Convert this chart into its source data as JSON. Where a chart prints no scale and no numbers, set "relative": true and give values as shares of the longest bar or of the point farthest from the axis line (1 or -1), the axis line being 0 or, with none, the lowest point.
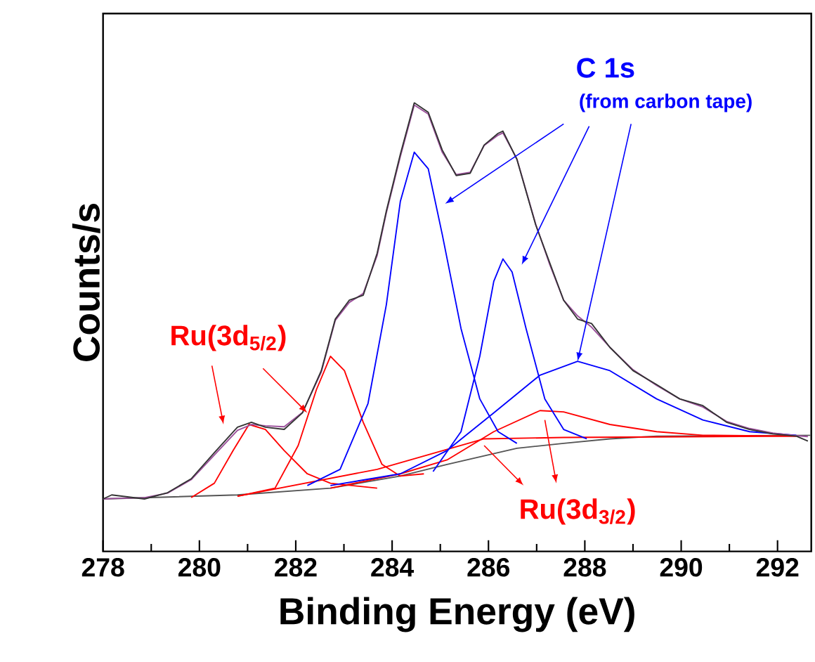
{
  "chart_data": {
    "type": "line",
    "relative": true,
    "xlabel": "Binding Energy (eV)",
    "ylabel": "Counts/s",
    "xlim": [
      278,
      292.7
    ],
    "xticks": [
      278,
      280,
      282,
      284,
      286,
      288,
      290,
      292
    ],
    "annotations": [
      "C 1s",
      "(from carbon tape)",
      "Ru(3d$_{5/2}$)",
      "Ru(3d$_{3/2}$)"
    ],
    "series": [
      {
        "color": "#555555",
        "x": [
          278.0,
          280.79,
          282.72,
          284.17,
          285.14,
          286.59,
          287.56,
          288.52,
          289.49,
          292.68
        ],
        "values": [
          0.117,
          0.126,
          0.141,
          0.168,
          0.194,
          0.23,
          0.241,
          0.251,
          0.257,
          0.259
        ]
      },
      {
        "color": "#ff0000",
        "x": [
          279.83,
          280.31,
          280.7,
          281.03,
          281.37,
          281.76,
          282.24,
          282.72,
          283.69
        ],
        "values": [
          0.12,
          0.152,
          0.225,
          0.283,
          0.272,
          0.225,
          0.173,
          0.152,
          0.141
        ]
      },
      {
        "color": "#ff0000",
        "x": [
          280.79,
          281.57,
          282.05,
          282.43,
          282.72,
          283.01,
          283.4,
          283.79,
          284.17,
          284.66
        ],
        "values": [
          0.123,
          0.141,
          0.236,
          0.361,
          0.435,
          0.403,
          0.288,
          0.194,
          0.168,
          0.173
        ]
      },
      {
        "color": "#ff0000",
        "x": [
          282.72,
          284.17,
          285.14,
          286.11,
          287.07,
          287.56,
          288.52,
          289.49,
          290.45,
          292.39
        ],
        "values": [
          0.141,
          0.173,
          0.204,
          0.267,
          0.314,
          0.311,
          0.283,
          0.267,
          0.259,
          0.257
        ]
      },
      {
        "color": "#ff0000",
        "x": [
          280.79,
          283.69,
          285.91,
          287.56,
          292.39
        ],
        "values": [
          0.123,
          0.183,
          0.251,
          0.254,
          0.257
        ]
      },
      {
        "color": "#0000ff",
        "x": [
          282.24,
          282.92,
          283.5,
          283.88,
          284.17,
          284.46,
          284.75,
          285.04,
          285.43,
          285.82,
          286.2,
          286.59
        ],
        "values": [
          0.147,
          0.183,
          0.33,
          0.55,
          0.78,
          0.89,
          0.853,
          0.707,
          0.497,
          0.34,
          0.267,
          0.241
        ]
      },
      {
        "color": "#0000ff",
        "x": [
          284.85,
          285.43,
          285.82,
          286.11,
          286.3,
          286.49,
          286.78,
          287.17,
          287.56,
          288.04
        ],
        "values": [
          0.178,
          0.267,
          0.435,
          0.602,
          0.652,
          0.623,
          0.497,
          0.34,
          0.272,
          0.251
        ]
      },
      {
        "color": "#0000ff",
        "x": [
          282.72,
          284.17,
          285.14,
          286.11,
          287.07,
          287.85,
          288.52,
          289.49,
          290.45,
          291.42,
          292.39
        ],
        "values": [
          0.147,
          0.173,
          0.225,
          0.309,
          0.393,
          0.424,
          0.403,
          0.34,
          0.293,
          0.267,
          0.259
        ]
      },
      {
        "color": "#9b4f9b",
        "x": [
          278.0,
          278.18,
          278.86,
          279.34,
          279.83,
          280.31,
          280.79,
          281.08,
          281.37,
          281.76,
          282.14,
          282.53,
          282.82,
          283.11,
          283.4,
          283.69,
          283.88,
          284.17,
          284.46,
          284.75,
          285.04,
          285.33,
          285.62,
          285.91,
          286.2,
          286.3,
          286.59,
          286.98,
          287.27,
          287.56,
          287.85,
          288.14,
          288.52,
          289.0,
          289.49,
          289.97,
          290.45,
          290.94,
          291.42,
          291.9,
          292.39,
          292.63
        ],
        "values": [
          0.117,
          0.118,
          0.12,
          0.13,
          0.16,
          0.215,
          0.27,
          0.283,
          0.28,
          0.278,
          0.31,
          0.4,
          0.515,
          0.555,
          0.575,
          0.66,
          0.755,
          0.88,
          0.995,
          0.975,
          0.89,
          0.84,
          0.845,
          0.905,
          0.928,
          0.933,
          0.875,
          0.73,
          0.64,
          0.56,
          0.525,
          0.5,
          0.455,
          0.405,
          0.37,
          0.34,
          0.322,
          0.29,
          0.274,
          0.264,
          0.258,
          0.256
        ]
      },
      {
        "color": "#333333",
        "x": [
          278.0,
          278.18,
          278.86,
          279.34,
          279.83,
          280.31,
          280.79,
          281.08,
          281.37,
          281.76,
          282.14,
          282.53,
          282.82,
          283.11,
          283.4,
          283.69,
          283.88,
          284.17,
          284.46,
          284.75,
          285.04,
          285.33,
          285.62,
          285.91,
          286.2,
          286.3,
          286.59,
          286.98,
          287.27,
          287.56,
          287.85,
          288.14,
          288.52,
          289.0,
          289.49,
          289.97,
          290.45,
          290.94,
          291.42,
          291.9,
          292.39,
          292.63
        ],
        "values": [
          0.117,
          0.126,
          0.117,
          0.131,
          0.162,
          0.22,
          0.277,
          0.288,
          0.277,
          0.272,
          0.309,
          0.403,
          0.518,
          0.56,
          0.571,
          0.665,
          0.759,
          0.885,
          1.0,
          0.979,
          0.895,
          0.838,
          0.843,
          0.906,
          0.932,
          0.937,
          0.874,
          0.728,
          0.644,
          0.56,
          0.518,
          0.508,
          0.455,
          0.403,
          0.372,
          0.34,
          0.325,
          0.288,
          0.272,
          0.262,
          0.257,
          0.246
        ]
      }
    ]
  }
}
